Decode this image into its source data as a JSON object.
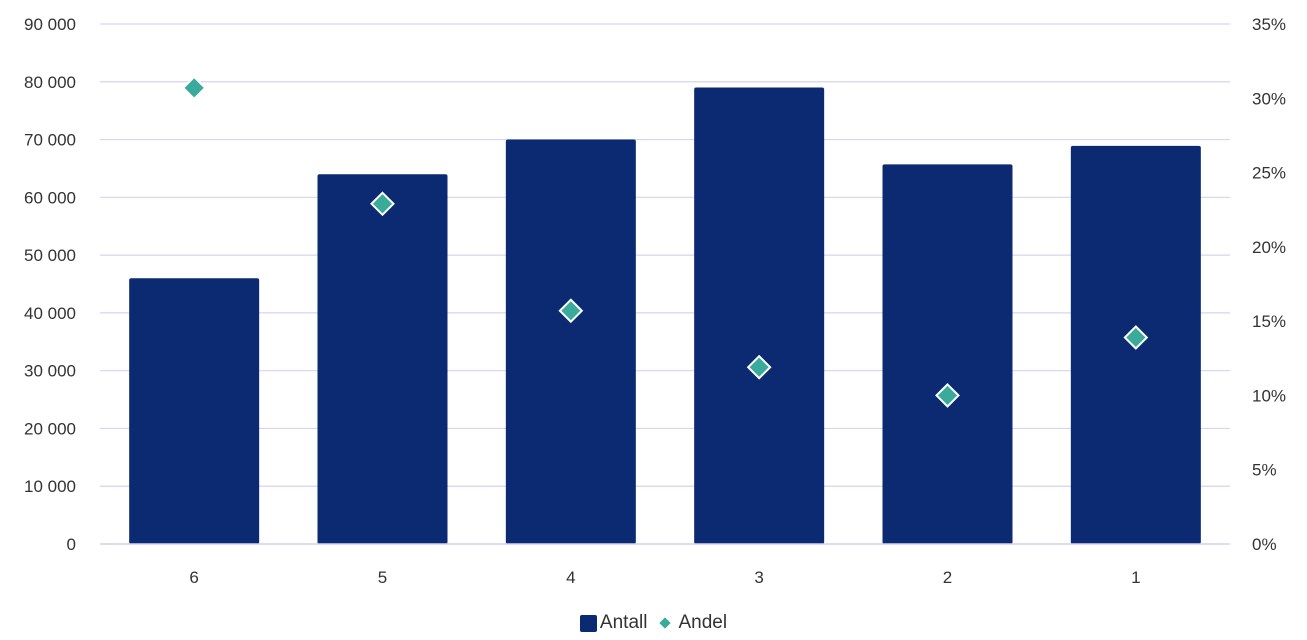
{
  "chart_data": {
    "type": "bar",
    "categories": [
      "6",
      "5",
      "4",
      "3",
      "2",
      "1"
    ],
    "series": [
      {
        "name": "Antall",
        "type": "bar",
        "axis": "left",
        "values": [
          46000,
          64000,
          70000,
          79000,
          65700,
          68900
        ],
        "color": "#0b2a72"
      },
      {
        "name": "Andel",
        "type": "scatter",
        "axis": "right",
        "values": [
          0.307,
          0.229,
          0.157,
          0.119,
          0.1,
          0.139
        ],
        "color": "#3aaa9a"
      }
    ],
    "y_left": {
      "min": 0,
      "max": 90000,
      "step": 10000,
      "tick_labels": [
        "0",
        "10 000",
        "20 000",
        "30 000",
        "40 000",
        "50 000",
        "60 000",
        "70 000",
        "80 000",
        "90 000"
      ]
    },
    "y_right": {
      "min": 0,
      "max": 0.35,
      "step": 0.05,
      "tick_labels": [
        "0%",
        "5%",
        "10%",
        "15%",
        "20%",
        "25%",
        "30%",
        "35%"
      ]
    },
    "grid": true,
    "legend_position": "bottom",
    "gridline_color": "#d6d3f0"
  }
}
